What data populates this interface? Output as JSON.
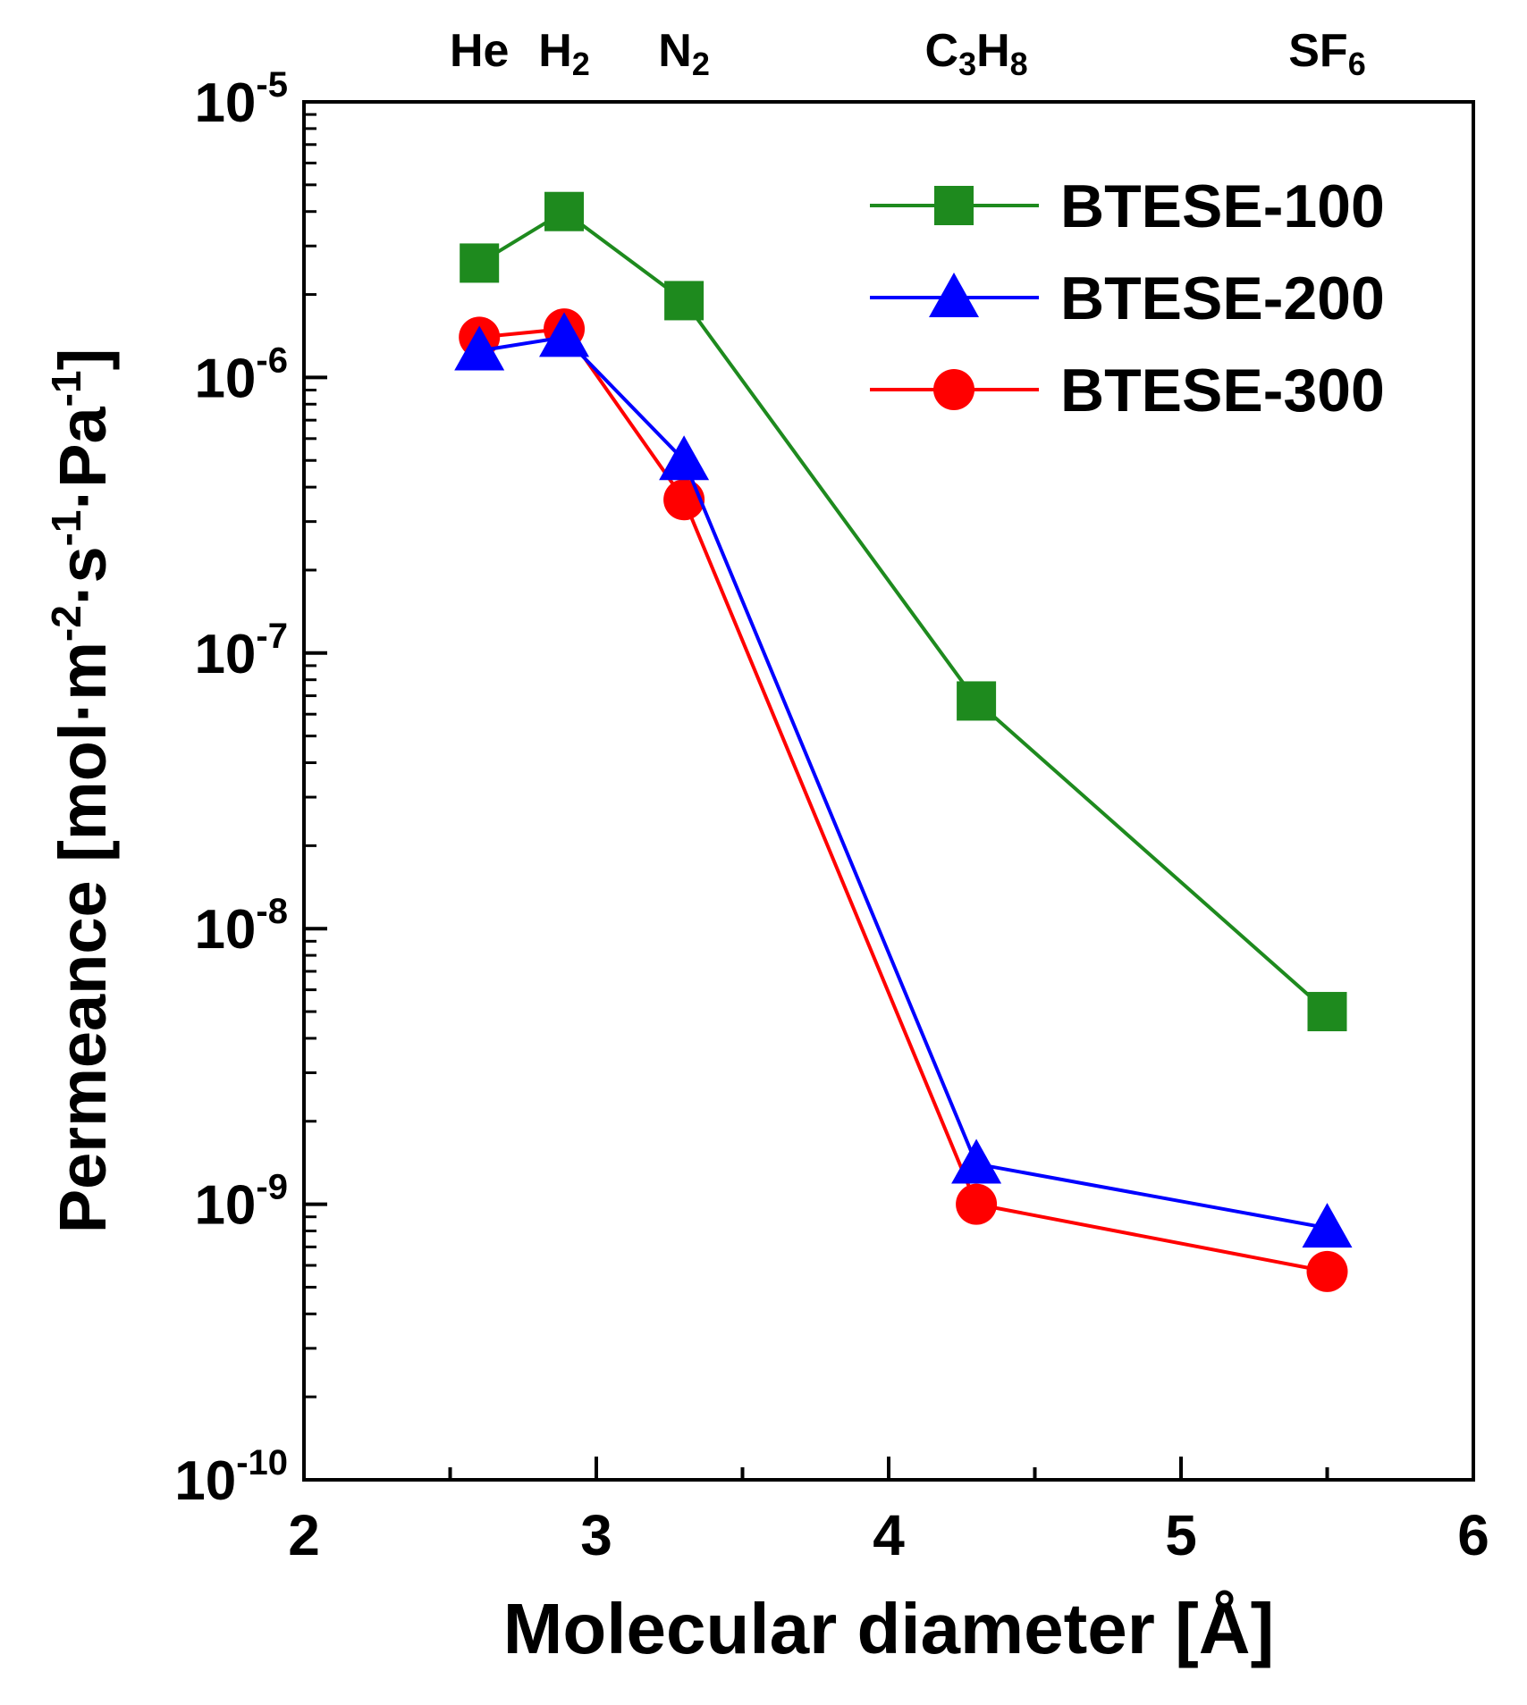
{
  "chart_data": {
    "type": "line",
    "title": "",
    "xlabel": "Molecular diameter [Å]",
    "ylabel": {
      "parts": [
        "Permeance [mol·m",
        "-2",
        "·s",
        "-1",
        "·Pa",
        "-1",
        "]"
      ]
    },
    "xlim": [
      2,
      6
    ],
    "ylim": [
      1e-10,
      1e-05
    ],
    "yscale": "log",
    "grid": false,
    "legend_position": "top-right",
    "x_ticks": [
      {
        "value": 2,
        "label": "2"
      },
      {
        "value": 3,
        "label": "3"
      },
      {
        "value": 4,
        "label": "4"
      },
      {
        "value": 5,
        "label": "5"
      },
      {
        "value": 6,
        "label": "6"
      }
    ],
    "y_ticks": [
      {
        "value": 1e-10,
        "base": "10",
        "exp": "-10"
      },
      {
        "value": 1e-09,
        "base": "10",
        "exp": "-9"
      },
      {
        "value": 1e-08,
        "base": "10",
        "exp": "-8"
      },
      {
        "value": 1e-07,
        "base": "10",
        "exp": "-7"
      },
      {
        "value": 1e-06,
        "base": "10",
        "exp": "-6"
      },
      {
        "value": 1e-05,
        "base": "10",
        "exp": "-5"
      }
    ],
    "gas_labels": [
      {
        "x": 2.6,
        "parts": [
          {
            "t": "He",
            "sub": false
          }
        ]
      },
      {
        "x": 2.89,
        "parts": [
          {
            "t": "H",
            "sub": false
          },
          {
            "t": "2",
            "sub": true
          }
        ]
      },
      {
        "x": 3.3,
        "parts": [
          {
            "t": "N",
            "sub": false
          },
          {
            "t": "2",
            "sub": true
          }
        ]
      },
      {
        "x": 4.3,
        "parts": [
          {
            "t": "C",
            "sub": false
          },
          {
            "t": "3",
            "sub": true
          },
          {
            "t": "H",
            "sub": false
          },
          {
            "t": "8",
            "sub": true
          }
        ]
      },
      {
        "x": 5.5,
        "parts": [
          {
            "t": "SF",
            "sub": false
          },
          {
            "t": "6",
            "sub": true
          }
        ]
      }
    ],
    "series": [
      {
        "name": "BTESE-100",
        "color": "#1e8a1e",
        "marker": "square",
        "x": [
          2.6,
          2.89,
          3.3,
          4.3,
          5.5
        ],
        "y": [
          2.6e-06,
          4e-06,
          1.9e-06,
          6.7e-08,
          5e-09
        ]
      },
      {
        "name": "BTESE-200",
        "color": "#0000ff",
        "marker": "triangle",
        "x": [
          2.6,
          2.89,
          3.3,
          4.3,
          5.5
        ],
        "y": [
          1.25e-06,
          1.4e-06,
          5e-07,
          1.4e-09,
          8.2e-10
        ]
      },
      {
        "name": "BTESE-300",
        "color": "#ff0000",
        "marker": "circle",
        "x": [
          2.6,
          2.89,
          3.3,
          4.3,
          5.5
        ],
        "y": [
          1.4e-06,
          1.5e-06,
          3.6e-07,
          1e-09,
          5.7e-10
        ]
      }
    ]
  }
}
